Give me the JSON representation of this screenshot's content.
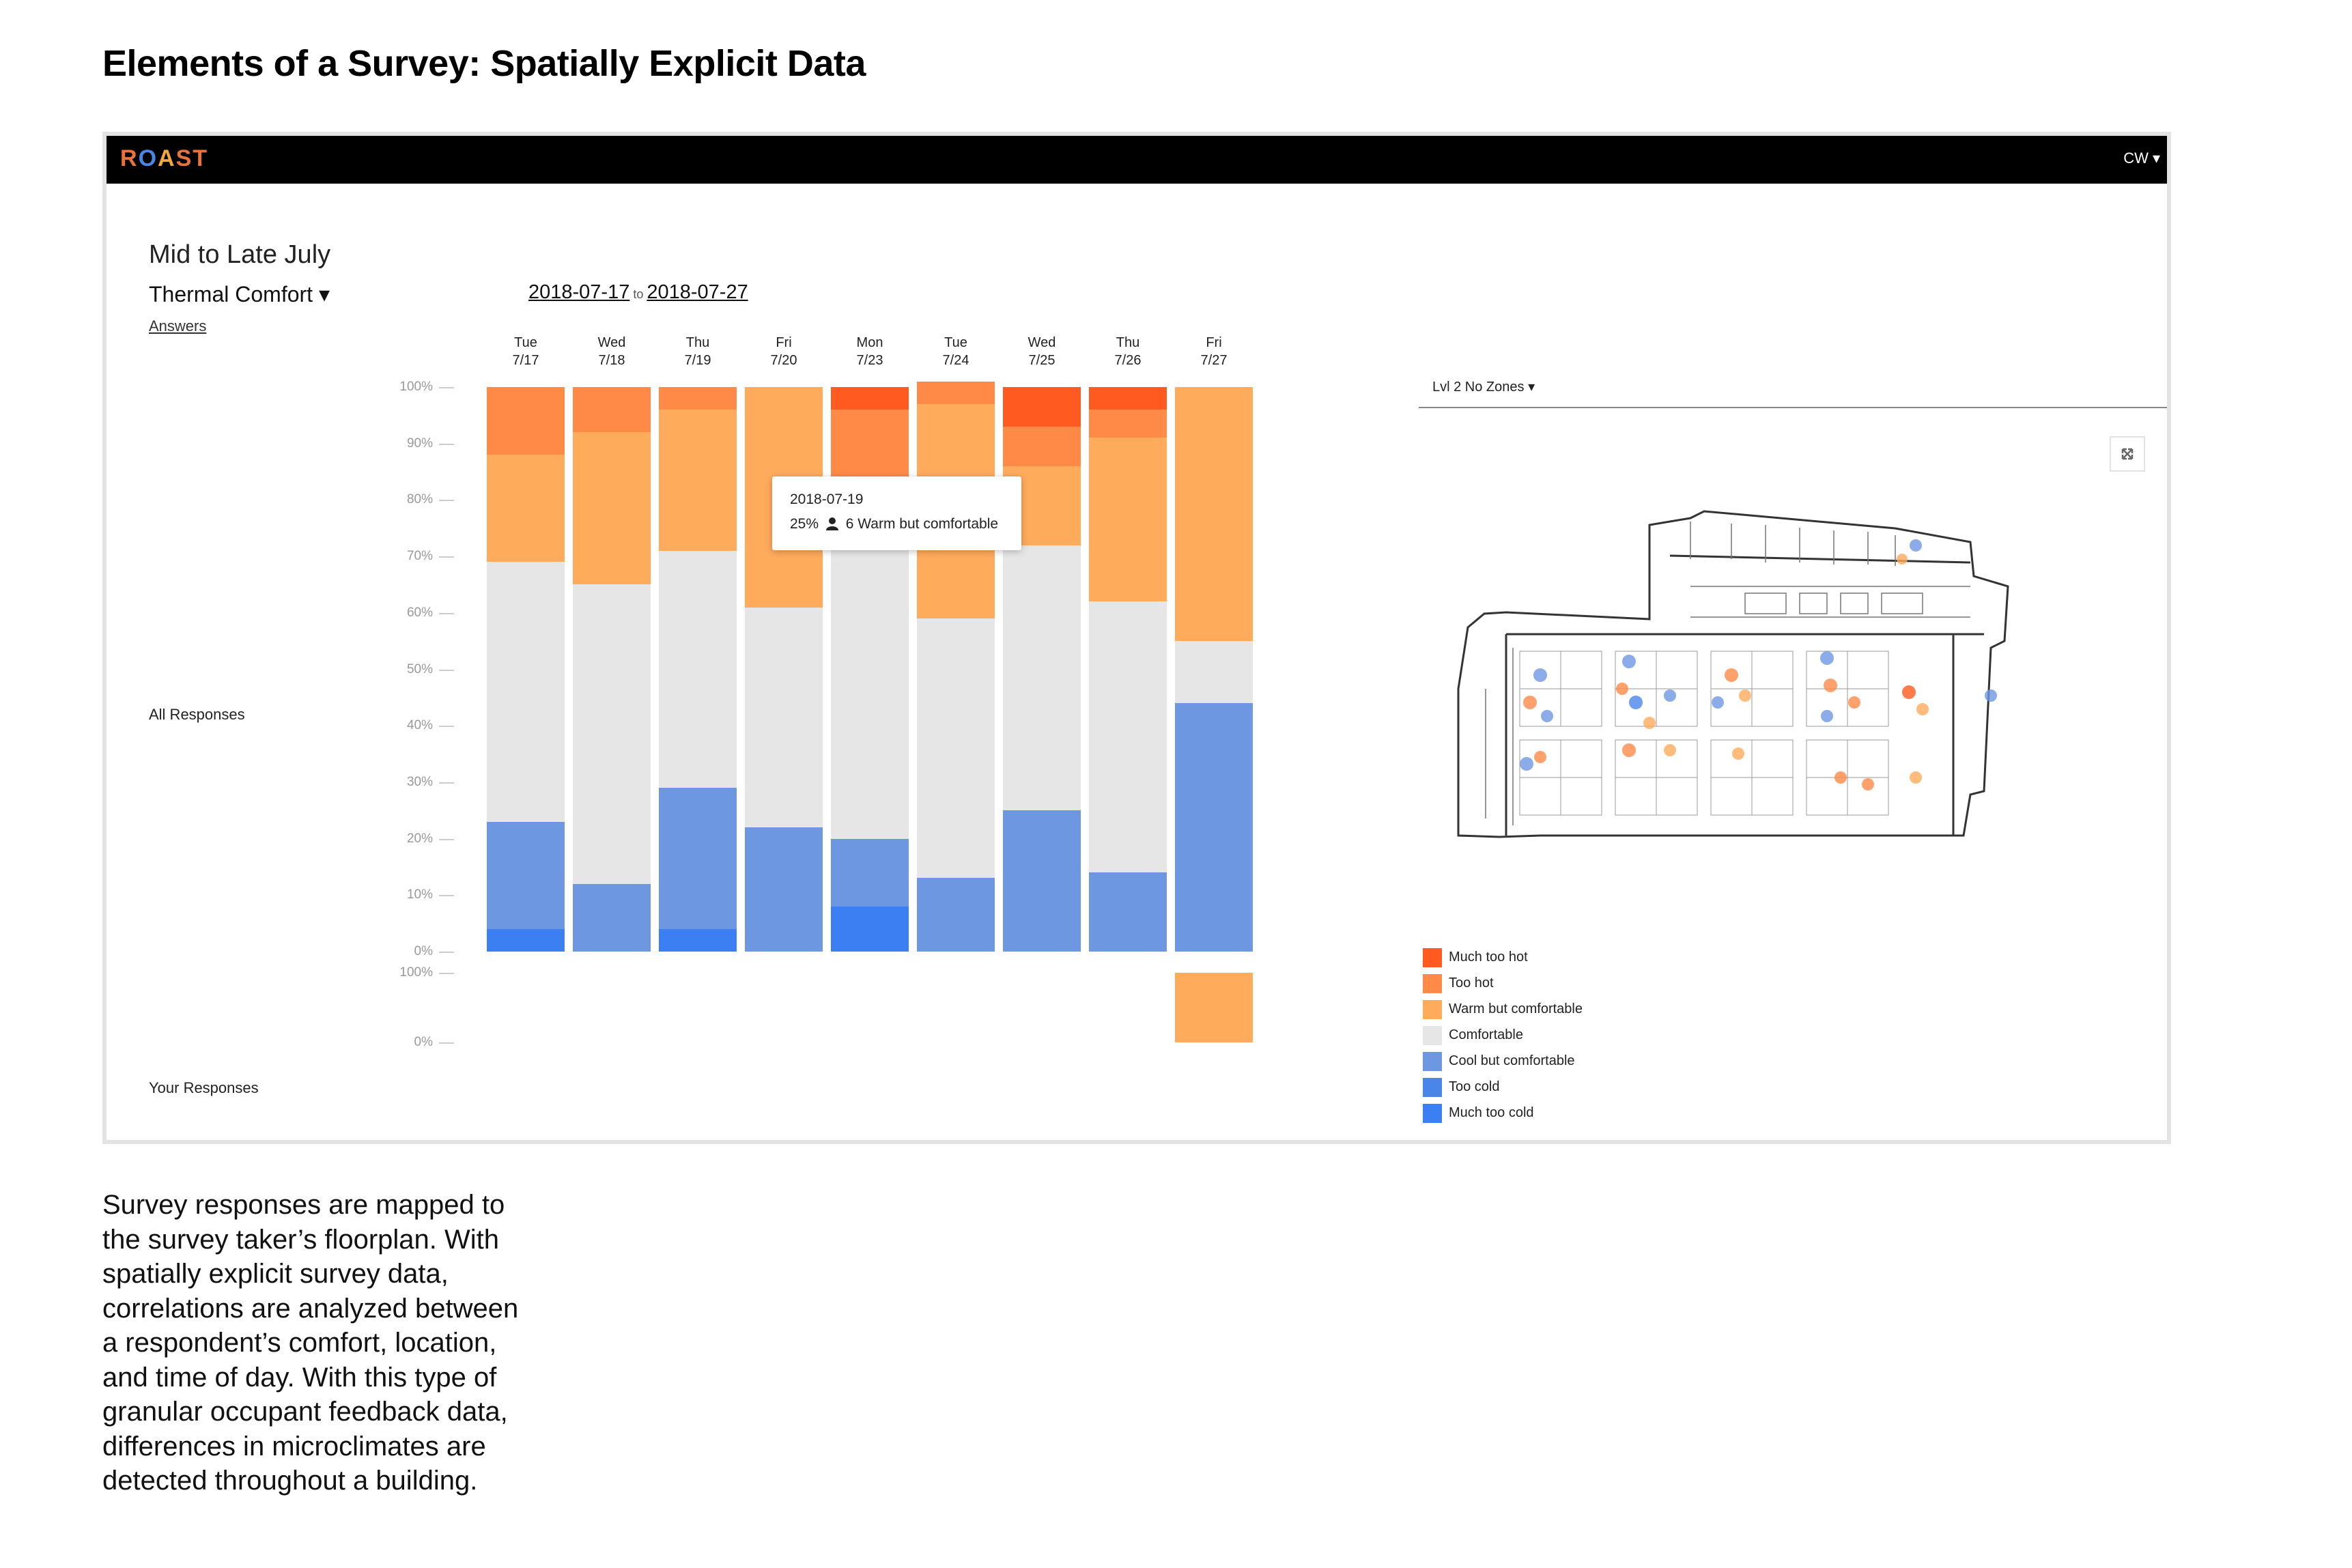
{
  "page": {
    "title": "Elements of a Survey: Spatially Explicit Data"
  },
  "app": {
    "logo": [
      "R",
      "O",
      "A",
      "S",
      "T"
    ],
    "logo_colors": [
      "#e8743b",
      "#4a86e8",
      "#f2a93b",
      "#e8743b",
      "#e8743b"
    ],
    "user_menu": "CW ▾"
  },
  "header": {
    "period_title": "Mid to Late July",
    "metric": "Thermal Comfort ▾",
    "answers_link": "Answers",
    "date_from": "2018-07-17",
    "date_to_word": "to",
    "date_to": "2018-07-27"
  },
  "rows": {
    "all_label": "All Responses",
    "your_label": "Your Responses"
  },
  "chart_data": {
    "type": "bar",
    "stacked": true,
    "categories": [
      "Tue 7/17",
      "Wed 7/18",
      "Thu 7/19",
      "Fri 7/20",
      "Mon 7/23",
      "Tue 7/24",
      "Wed 7/25",
      "Thu 7/26",
      "Fri 7/27"
    ],
    "days": [
      {
        "weekday": "Tue",
        "date": "7/17"
      },
      {
        "weekday": "Wed",
        "date": "7/18"
      },
      {
        "weekday": "Thu",
        "date": "7/19"
      },
      {
        "weekday": "Fri",
        "date": "7/20"
      },
      {
        "weekday": "Mon",
        "date": "7/23"
      },
      {
        "weekday": "Tue",
        "date": "7/24"
      },
      {
        "weekday": "Wed",
        "date": "7/25"
      },
      {
        "weekday": "Thu",
        "date": "7/26"
      },
      {
        "weekday": "Fri",
        "date": "7/27"
      }
    ],
    "series": [
      {
        "name": "Much too cold",
        "color": "#3b7ff2",
        "values": [
          4,
          0,
          4,
          0,
          8,
          0,
          0,
          0,
          0
        ]
      },
      {
        "name": "Too cold",
        "color": "#4a86e8",
        "values": [
          0,
          0,
          0,
          0,
          0,
          0,
          0,
          0,
          0
        ]
      },
      {
        "name": "Cool but comfortable",
        "color": "#6e97e2",
        "values": [
          19,
          12,
          25,
          22,
          12,
          13,
          25,
          14,
          44
        ]
      },
      {
        "name": "Comfortable",
        "color": "#e6e6e6",
        "values": [
          46,
          53,
          42,
          39,
          56,
          46,
          47,
          48,
          11
        ]
      },
      {
        "name": "Warm but comfortable",
        "color": "#ffab5c",
        "values": [
          19,
          27,
          25,
          39,
          0,
          38,
          14,
          29,
          45
        ]
      },
      {
        "name": "Too hot",
        "color": "#ff8a47",
        "values": [
          12,
          8,
          4,
          0,
          20,
          4,
          7,
          5,
          0
        ]
      },
      {
        "name": "Much too hot",
        "color": "#ff5a1f",
        "values": [
          0,
          0,
          0,
          0,
          4,
          0,
          7,
          4,
          0
        ]
      }
    ],
    "yticks": [
      "100%",
      "90%",
      "80%",
      "70%",
      "60%",
      "50%",
      "40%",
      "30%",
      "20%",
      "10%",
      "0%"
    ],
    "your_yticks": [
      "100%",
      "0%"
    ],
    "your_responses": [
      {
        "day_index": 8,
        "category": "Warm but comfortable",
        "value": 100
      }
    ],
    "ylim": [
      0,
      100
    ]
  },
  "tooltip": {
    "date": "2018-07-19",
    "percent": "25%",
    "count": "6",
    "label": "Warm but comfortable"
  },
  "floorplan": {
    "zone_select": "Lvl 2 No Zones ▾"
  },
  "legend": [
    {
      "label": "Much too hot",
      "color": "#ff5a1f"
    },
    {
      "label": "Too hot",
      "color": "#ff8a47"
    },
    {
      "label": "Warm but comfortable",
      "color": "#ffab5c"
    },
    {
      "label": "Comfortable",
      "color": "#e6e6e6"
    },
    {
      "label": "Cool but comfortable",
      "color": "#6e97e2"
    },
    {
      "label": "Too cold",
      "color": "#4a86e8"
    },
    {
      "label": "Much too cold",
      "color": "#3b7ff2"
    }
  ],
  "caption": {
    "lines": [
      "Survey responses are mapped to",
      "the survey taker’s floorplan. With",
      "spatially explicit survey data,",
      "correlations are analyzed between",
      "a respondent’s comfort, location,",
      "and time of day. With this type of",
      "granular occupant feedback data,",
      "differences in microclimates are",
      "detected throughout a building."
    ]
  }
}
